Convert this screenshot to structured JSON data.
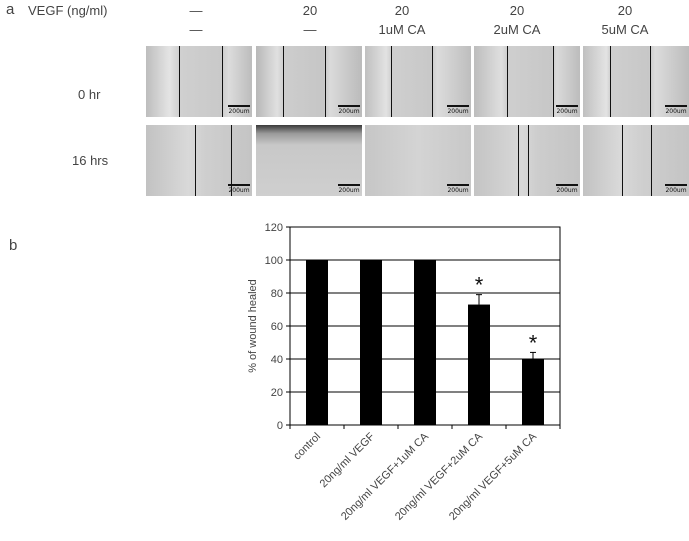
{
  "panel_a": {
    "letter": "a",
    "vegf_label": "VEGF (ng/ml)",
    "columns": [
      {
        "vegf": "—",
        "treatment": "—"
      },
      {
        "vegf": "20",
        "treatment": "—"
      },
      {
        "vegf": "20",
        "treatment": "1uM CA"
      },
      {
        "vegf": "20",
        "treatment": "2uM CA"
      },
      {
        "vegf": "20",
        "treatment": "5uM CA"
      }
    ],
    "rows": [
      "0 hr",
      "16 hrs"
    ],
    "scale_label": "200um"
  },
  "panel_b": {
    "letter": "b"
  },
  "chart_data": {
    "type": "bar",
    "categories": [
      "control",
      "20ng/ml VEGF",
      "20ng/ml VEGF+1uM CA",
      "20ng/ml VEGF+2uM CA",
      "20ng/ml VEGF+5uM CA"
    ],
    "values": [
      100,
      100,
      100,
      73,
      40
    ],
    "errors": [
      0,
      0,
      0,
      6,
      4
    ],
    "significance": [
      "",
      "",
      "",
      "*",
      "*"
    ],
    "ylabel": "% of wound healed",
    "xlabel": "",
    "ylim": [
      0,
      120
    ],
    "yticks": [
      0,
      20,
      40,
      60,
      80,
      100,
      120
    ],
    "grid": true,
    "bar_color": "#000000"
  }
}
